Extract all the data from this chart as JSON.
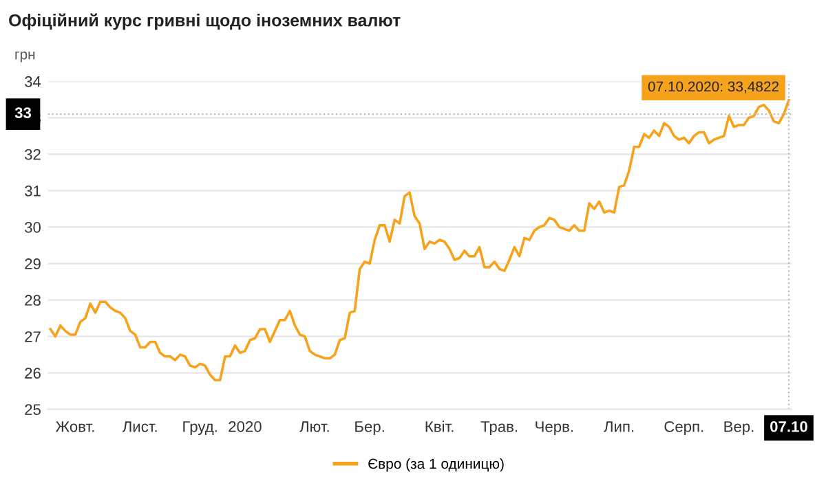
{
  "chart_data": {
    "type": "line",
    "title": "Офіційний курс гривні щодо іноземних валют",
    "ylabel": "грн",
    "categories": [
      null,
      null,
      null,
      null,
      null,
      "Жовт.",
      null,
      null,
      null,
      null,
      null,
      null,
      null,
      null,
      null,
      null,
      null,
      null,
      "Лист.",
      null,
      null,
      null,
      null,
      null,
      null,
      null,
      null,
      null,
      null,
      null,
      "Груд.",
      null,
      null,
      null,
      null,
      null,
      null,
      null,
      null,
      "2020",
      null,
      null,
      null,
      null,
      null,
      null,
      null,
      null,
      null,
      null,
      null,
      null,
      null,
      "Лют.",
      null,
      null,
      null,
      null,
      null,
      null,
      null,
      null,
      null,
      null,
      "Бер.",
      null,
      null,
      null,
      null,
      null,
      null,
      null,
      null,
      null,
      null,
      null,
      null,
      null,
      "Квіт.",
      null,
      null,
      null,
      null,
      null,
      null,
      null,
      null,
      null,
      null,
      null,
      "Трав.",
      null,
      null,
      null,
      null,
      null,
      null,
      null,
      null,
      null,
      null,
      "Черв.",
      null,
      null,
      null,
      null,
      null,
      null,
      null,
      null,
      null,
      null,
      null,
      null,
      "Лип.",
      null,
      null,
      null,
      null,
      null,
      null,
      null,
      null,
      null,
      null,
      null,
      null,
      "Серп.",
      null,
      null,
      null,
      null,
      null,
      null,
      null,
      null,
      null,
      null,
      "Вер.",
      null,
      null,
      null,
      null,
      null,
      null,
      null,
      null,
      null,
      "07.10"
    ],
    "ylim": [
      25,
      34
    ],
    "yticks": [
      25,
      26,
      27,
      28,
      29,
      30,
      31,
      32,
      33,
      34
    ],
    "grid": "y",
    "legend": "bottom",
    "marker": "none",
    "line_style": "solid",
    "series": [
      {
        "name": "Євро (за 1 одиницю)",
        "color": "#f7a21b",
        "values": [
          27.2,
          27.0,
          27.3,
          27.15,
          27.05,
          27.05,
          27.4,
          27.5,
          27.9,
          27.65,
          27.95,
          27.95,
          27.8,
          27.7,
          27.65,
          27.5,
          27.15,
          27.05,
          26.7,
          26.7,
          26.85,
          26.85,
          26.55,
          26.45,
          26.45,
          26.35,
          26.5,
          26.45,
          26.2,
          26.15,
          26.25,
          26.2,
          25.95,
          25.8,
          25.8,
          26.45,
          26.45,
          26.75,
          26.55,
          26.6,
          26.9,
          26.95,
          27.2,
          27.2,
          26.85,
          27.15,
          27.45,
          27.45,
          27.7,
          27.3,
          27.05,
          27.0,
          26.6,
          26.5,
          26.45,
          26.4,
          26.4,
          26.5,
          26.9,
          26.95,
          27.65,
          27.7,
          28.85,
          29.05,
          29.0,
          29.65,
          30.05,
          30.05,
          29.6,
          30.2,
          30.1,
          30.85,
          30.95,
          30.3,
          30.1,
          29.4,
          29.6,
          29.55,
          29.65,
          29.6,
          29.4,
          29.1,
          29.15,
          29.35,
          29.2,
          29.2,
          29.45,
          28.9,
          28.9,
          29.05,
          28.85,
          28.8,
          29.1,
          29.45,
          29.2,
          29.7,
          29.65,
          29.9,
          30.0,
          30.05,
          30.25,
          30.2,
          30.0,
          29.95,
          29.9,
          30.05,
          29.9,
          29.9,
          30.65,
          30.5,
          30.7,
          30.4,
          30.45,
          30.4,
          31.1,
          31.15,
          31.55,
          32.2,
          32.2,
          32.55,
          32.45,
          32.65,
          32.5,
          32.85,
          32.75,
          32.5,
          32.4,
          32.45,
          32.3,
          32.5,
          32.6,
          32.6,
          32.3,
          32.4,
          32.45,
          32.5,
          33.05,
          32.75,
          32.8,
          32.8,
          33.0,
          33.05,
          33.3,
          33.35,
          33.2,
          32.9,
          32.85,
          33.1,
          33.4822
        ]
      }
    ],
    "ref_lines": [
      {
        "axis": "y",
        "value": 33.1,
        "label": "33",
        "color": "#bbbbbb",
        "line_style": "dotted"
      },
      {
        "axis": "x",
        "value": "07.10",
        "color": "#bbbbbb",
        "line_style": "dotted"
      }
    ],
    "annotations": [
      {
        "text": "07.10.2020: 33,4822",
        "x": "07.10",
        "y": 33.4822
      }
    ]
  }
}
